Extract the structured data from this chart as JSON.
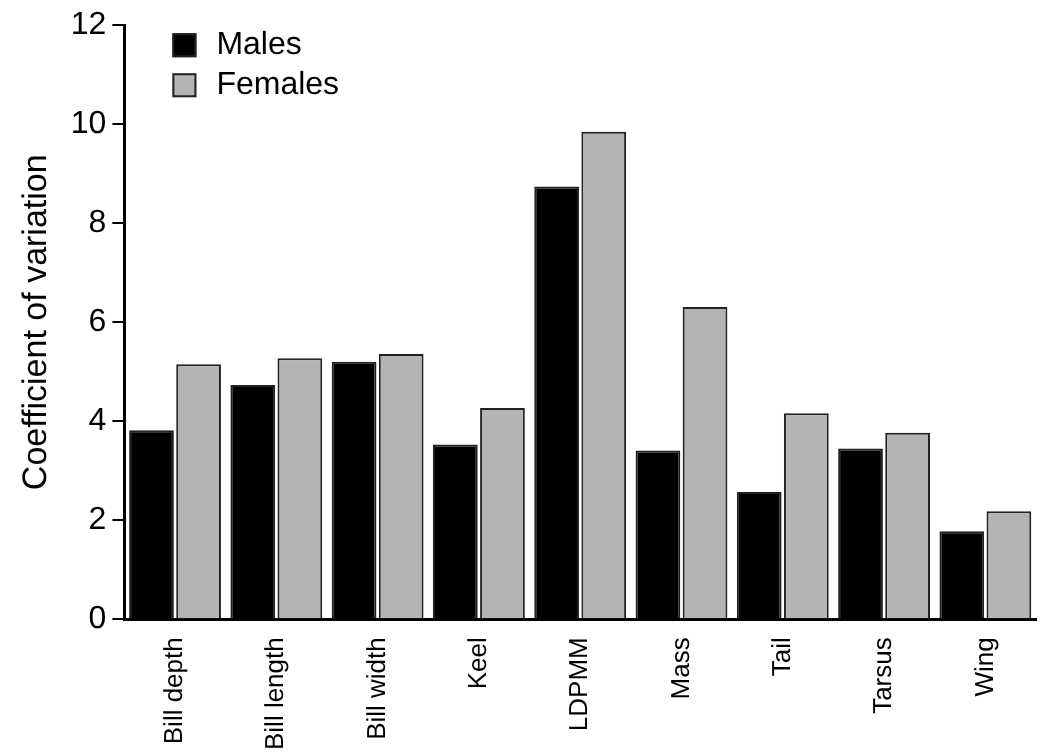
{
  "chart_data": {
    "type": "bar",
    "ylabel": "Coefficient of variation",
    "categories": [
      "Bill depth",
      "Bill length",
      "Bill width",
      "Keel",
      "LDPMM",
      "Mass",
      "Tail",
      "Tarsus",
      "Wing"
    ],
    "series": [
      {
        "name": "Males",
        "color": "#000000",
        "values": [
          3.82,
          4.73,
          5.2,
          3.53,
          8.74,
          3.41,
          2.57,
          3.45,
          1.78
        ]
      },
      {
        "name": "Females",
        "color": "#b4b4b4",
        "values": [
          5.15,
          5.27,
          5.36,
          4.27,
          9.85,
          6.31,
          4.16,
          3.77,
          2.18
        ]
      }
    ],
    "ylim": [
      0,
      12
    ],
    "yticks": [
      0,
      2,
      4,
      6,
      8,
      10,
      12
    ],
    "grid": false,
    "legend": "top left"
  }
}
